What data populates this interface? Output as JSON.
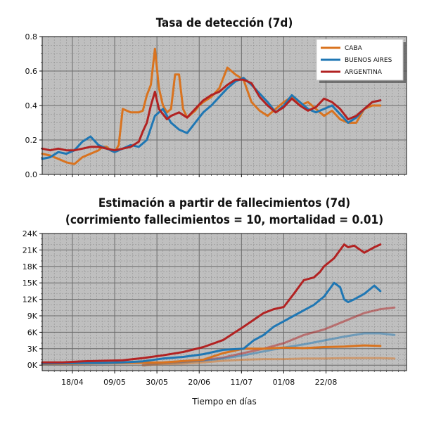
{
  "chart_data": [
    {
      "type": "line",
      "title": "Tasa de detección (7d)",
      "xlabel": "",
      "ylabel": "",
      "ylim": [
        0,
        0.8
      ],
      "yticks": [
        "0.0",
        "0.2",
        "0.4",
        "0.6",
        "0.8"
      ],
      "grid": true,
      "legend": "top-right",
      "x_start": "2020-04-03",
      "series": [
        {
          "name": "CABA",
          "color": "#d9731f",
          "x": [
            0,
            4,
            8,
            12,
            16,
            20,
            24,
            28,
            30,
            32,
            34,
            36,
            38,
            40,
            44,
            48,
            50,
            52,
            54,
            56,
            58,
            60,
            62,
            64,
            66,
            68,
            70,
            72,
            74,
            76,
            78,
            80,
            84,
            88,
            92,
            96,
            100,
            104,
            108,
            112,
            116,
            120,
            124,
            128,
            132,
            136,
            140,
            144,
            148,
            152,
            156,
            160,
            164,
            168
          ],
          "y": [
            0.12,
            0.11,
            0.09,
            0.07,
            0.06,
            0.1,
            0.12,
            0.14,
            0.16,
            0.16,
            0.14,
            0.13,
            0.17,
            0.38,
            0.36,
            0.36,
            0.37,
            0.46,
            0.52,
            0.73,
            0.5,
            0.4,
            0.36,
            0.38,
            0.58,
            0.58,
            0.38,
            0.33,
            0.35,
            0.37,
            0.4,
            0.42,
            0.45,
            0.5,
            0.62,
            0.58,
            0.55,
            0.42,
            0.37,
            0.34,
            0.38,
            0.42,
            0.45,
            0.4,
            0.42,
            0.38,
            0.34,
            0.37,
            0.32,
            0.3,
            0.3,
            0.38,
            0.4,
            0.4
          ]
        },
        {
          "name": "BUENOS AIRES",
          "color": "#1f77b4",
          "x": [
            0,
            4,
            8,
            12,
            16,
            20,
            24,
            28,
            32,
            36,
            40,
            44,
            48,
            52,
            56,
            60,
            64,
            68,
            72,
            76,
            80,
            84,
            88,
            92,
            96,
            100,
            104,
            108,
            112,
            116,
            120,
            124,
            128,
            132,
            136,
            140,
            144,
            148,
            152,
            156,
            160,
            164,
            168
          ],
          "y": [
            0.09,
            0.1,
            0.13,
            0.12,
            0.14,
            0.19,
            0.22,
            0.17,
            0.15,
            0.13,
            0.15,
            0.17,
            0.16,
            0.2,
            0.34,
            0.38,
            0.3,
            0.26,
            0.24,
            0.3,
            0.36,
            0.4,
            0.45,
            0.5,
            0.54,
            0.56,
            0.52,
            0.47,
            0.42,
            0.36,
            0.4,
            0.46,
            0.42,
            0.38,
            0.36,
            0.38,
            0.4,
            0.35,
            0.3,
            0.33,
            0.38,
            0.42,
            0.43
          ]
        },
        {
          "name": "ARGENTINA",
          "color": "#b22222",
          "x": [
            0,
            4,
            8,
            12,
            16,
            20,
            24,
            28,
            32,
            36,
            40,
            44,
            48,
            50,
            52,
            54,
            56,
            58,
            60,
            62,
            64,
            68,
            72,
            76,
            80,
            84,
            88,
            92,
            96,
            100,
            104,
            108,
            112,
            116,
            120,
            124,
            128,
            132,
            136,
            140,
            144,
            148,
            152,
            156,
            160,
            164,
            168
          ],
          "y": [
            0.15,
            0.14,
            0.15,
            0.14,
            0.14,
            0.15,
            0.16,
            0.16,
            0.15,
            0.14,
            0.15,
            0.16,
            0.19,
            0.25,
            0.3,
            0.4,
            0.48,
            0.38,
            0.35,
            0.32,
            0.34,
            0.36,
            0.33,
            0.38,
            0.43,
            0.46,
            0.48,
            0.52,
            0.55,
            0.55,
            0.53,
            0.45,
            0.4,
            0.36,
            0.39,
            0.44,
            0.4,
            0.37,
            0.39,
            0.44,
            0.42,
            0.38,
            0.32,
            0.34,
            0.38,
            0.42,
            0.43
          ]
        }
      ]
    },
    {
      "type": "line",
      "title": "Estimación a partir de fallecimientos (7d)",
      "subtitle": "(corrimiento fallecimientos = 10, mortalidad = 0.01)",
      "xlabel": "Tiempo en días",
      "ylabel": "",
      "ylim": [
        -1000,
        24000
      ],
      "yticks": [
        "0K",
        "3K",
        "6K",
        "9K",
        "12K",
        "15K",
        "18K",
        "21K",
        "24K"
      ],
      "xticks": [
        "18/04",
        "09/05",
        "30/05",
        "20/06",
        "11/07",
        "01/08",
        "22/08"
      ],
      "grid": true,
      "x_start": "2020-04-03",
      "series": [
        {
          "color": "#b22222",
          "x": [
            0,
            10,
            20,
            30,
            40,
            50,
            60,
            70,
            80,
            90,
            100,
            110,
            115,
            120,
            125,
            130,
            135,
            138,
            140,
            145,
            150,
            152,
            155,
            160,
            165,
            168
          ],
          "y": [
            500,
            500,
            700,
            800,
            900,
            1300,
            1800,
            2400,
            3300,
            4600,
            7000,
            9500,
            10200,
            10600,
            13000,
            15500,
            16000,
            17000,
            18000,
            19500,
            22000,
            21500,
            21800,
            20500,
            21500,
            22000
          ]
        },
        {
          "color": "#1f77b4",
          "x": [
            0,
            10,
            20,
            30,
            40,
            50,
            60,
            70,
            80,
            90,
            100,
            105,
            110,
            115,
            120,
            125,
            130,
            135,
            140,
            145,
            148,
            150,
            152,
            155,
            160,
            165,
            168
          ],
          "y": [
            300,
            350,
            400,
            400,
            500,
            700,
            1200,
            1500,
            2000,
            2800,
            3000,
            4500,
            5500,
            7000,
            8000,
            9000,
            10000,
            11000,
            12500,
            15000,
            14200,
            12000,
            11500,
            12000,
            13000,
            14500,
            13500
          ]
        },
        {
          "color": "#d9731f",
          "x": [
            0,
            20,
            40,
            60,
            80,
            90,
            100,
            110,
            120,
            130,
            140,
            150,
            160,
            168
          ],
          "y": [
            200,
            300,
            400,
            500,
            1000,
            2200,
            3000,
            3000,
            3200,
            3100,
            3300,
            3400,
            3600,
            3500
          ]
        },
        {
          "color": "#b22222",
          "alpha": 0.5,
          "x": [
            50,
            60,
            70,
            80,
            90,
            100,
            110,
            120,
            130,
            140,
            150,
            160,
            168,
            175
          ],
          "y": [
            0,
            400,
            600,
            900,
            1400,
            2200,
            3000,
            4000,
            5500,
            6500,
            8000,
            9500,
            10200,
            10500
          ]
        },
        {
          "color": "#1f77b4",
          "alpha": 0.5,
          "x": [
            50,
            60,
            70,
            80,
            90,
            100,
            110,
            120,
            130,
            140,
            150,
            160,
            168,
            175
          ],
          "y": [
            0,
            300,
            500,
            800,
            1200,
            1800,
            2500,
            3200,
            3800,
            4500,
            5200,
            5800,
            5800,
            5500
          ]
        },
        {
          "color": "#d9731f",
          "alpha": 0.5,
          "x": [
            50,
            60,
            70,
            80,
            90,
            100,
            110,
            120,
            130,
            140,
            150,
            160,
            168,
            175
          ],
          "y": [
            0,
            200,
            300,
            500,
            800,
            1000,
            1100,
            1100,
            1200,
            1200,
            1300,
            1300,
            1300,
            1200
          ]
        }
      ]
    }
  ]
}
